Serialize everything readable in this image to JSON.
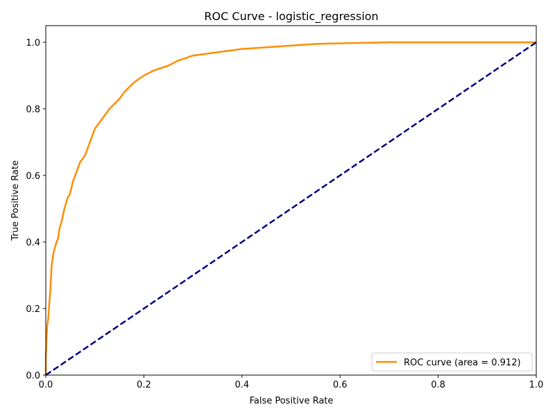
{
  "chart_data": {
    "type": "line",
    "title": "ROC Curve - logistic_regression",
    "xlabel": "False Positive Rate",
    "ylabel": "True Positive Rate",
    "xlim": [
      0.0,
      1.0
    ],
    "ylim": [
      0.0,
      1.05
    ],
    "xticks": [
      "0.0",
      "0.2",
      "0.4",
      "0.6",
      "0.8",
      "1.0"
    ],
    "yticks": [
      "0.0",
      "0.2",
      "0.4",
      "0.6",
      "0.8",
      "1.0"
    ],
    "grid": false,
    "legend_position": "lower-right",
    "series": [
      {
        "name": "ROC curve (area = 0.912)",
        "color": "#ff8c00",
        "style": "solid",
        "x": [
          0.0,
          0.0,
          0.002,
          0.003,
          0.005,
          0.007,
          0.009,
          0.011,
          0.012,
          0.014,
          0.016,
          0.018,
          0.02,
          0.022,
          0.025,
          0.028,
          0.032,
          0.035,
          0.038,
          0.042,
          0.045,
          0.048,
          0.052,
          0.055,
          0.06,
          0.065,
          0.07,
          0.075,
          0.08,
          0.085,
          0.09,
          0.095,
          0.1,
          0.105,
          0.11,
          0.115,
          0.12,
          0.13,
          0.14,
          0.15,
          0.16,
          0.17,
          0.18,
          0.19,
          0.2,
          0.22,
          0.25,
          0.27,
          0.3,
          0.35,
          0.4,
          0.45,
          0.5,
          0.55,
          0.6,
          0.7,
          0.8,
          1.0
        ],
        "y": [
          0.0,
          0.05,
          0.12,
          0.15,
          0.17,
          0.21,
          0.25,
          0.3,
          0.33,
          0.35,
          0.37,
          0.38,
          0.39,
          0.4,
          0.41,
          0.44,
          0.46,
          0.48,
          0.5,
          0.52,
          0.535,
          0.54,
          0.56,
          0.58,
          0.6,
          0.62,
          0.64,
          0.65,
          0.66,
          0.68,
          0.7,
          0.72,
          0.74,
          0.75,
          0.76,
          0.77,
          0.78,
          0.8,
          0.815,
          0.83,
          0.85,
          0.865,
          0.88,
          0.89,
          0.9,
          0.915,
          0.93,
          0.945,
          0.96,
          0.97,
          0.98,
          0.985,
          0.99,
          0.995,
          0.997,
          1.0,
          1.0,
          1.0
        ]
      },
      {
        "name": "",
        "color": "#000080",
        "style": "dashed",
        "x": [
          0.0,
          1.0
        ],
        "y": [
          0.0,
          1.0
        ]
      }
    ]
  }
}
